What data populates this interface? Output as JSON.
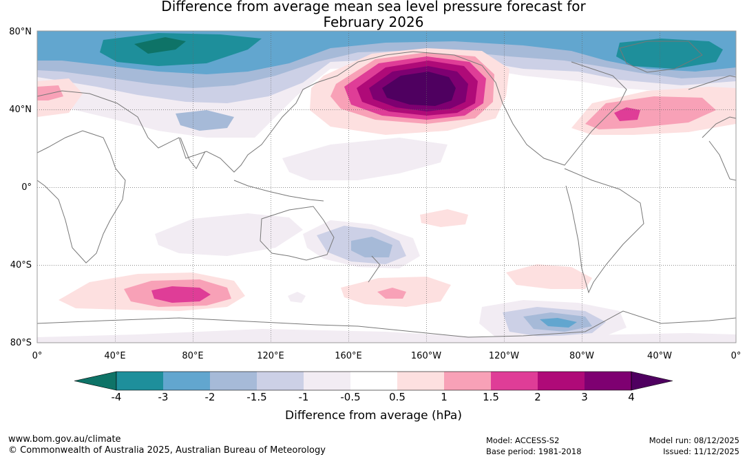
{
  "title": {
    "line1": "Difference from average mean sea level pressure forecast for",
    "line2": "February 2026"
  },
  "axes": {
    "lat_labels": [
      "80°N",
      "40°N",
      "0°",
      "40°S",
      "80°S"
    ],
    "lon_labels": [
      "0°",
      "40°E",
      "80°E",
      "120°E",
      "160°E",
      "160°W",
      "120°W",
      "80°W",
      "40°W",
      "0°"
    ]
  },
  "colorbar": {
    "ticks": [
      "-4",
      "-3",
      "-2",
      "-1.5",
      "-1",
      "-0.5",
      "0.5",
      "1",
      "1.5",
      "2",
      "3",
      "4"
    ],
    "colors": [
      "#0e7367",
      "#1e8f9b",
      "#62a6cf",
      "#a6bad8",
      "#ccd0e6",
      "#f2ecf3",
      "#ffffff",
      "#fde0e0",
      "#f8a1b7",
      "#df3d97",
      "#af0a78",
      "#7e0071",
      "#4f0060"
    ],
    "title": "Difference from average (hPa)"
  },
  "footer": {
    "website": "www.bom.gov.au/climate",
    "copyright": "© Commonwealth of Australia 2025, Australian Bureau of Meteorology",
    "model": "Model: ACCESS-S2",
    "base_period": "Base period: 1981-2018",
    "model_run": "Model run: 08/12/2025",
    "issued": "Issued: 11/12/2025"
  }
}
